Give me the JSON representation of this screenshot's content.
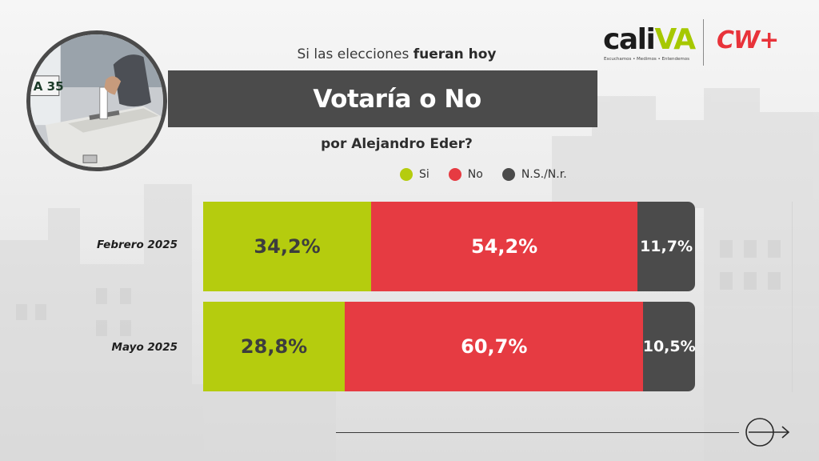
{
  "header": {
    "kicker_plain": "Si las elecciones",
    "kicker_bold": "fueran hoy",
    "title": "Votaría o No",
    "question": "por Alejandro Eder?"
  },
  "logos": {
    "cali_prefix": "cali",
    "cali_suffix": "VA",
    "cali_tagline": "Escuchamos • Medimos • Entendemos",
    "cw": "CW+"
  },
  "photo": {
    "box_label": "A 35"
  },
  "colors": {
    "si": "#b5cc0e",
    "no": "#e63b42",
    "ns": "#4b4b4b",
    "title_band": "#4b4b4b"
  },
  "chart_data": {
    "type": "bar",
    "orientation": "horizontal",
    "stacked": true,
    "normalized": true,
    "title": "Votaría o No",
    "categories": [
      "Febrero 2025",
      "Mayo 2025"
    ],
    "series": [
      {
        "name": "Si",
        "values": [
          34.2,
          28.8
        ],
        "labels": [
          "34,2%",
          "28,8%"
        ]
      },
      {
        "name": "No",
        "values": [
          54.2,
          60.7
        ],
        "labels": [
          "54,2%",
          "60,7%"
        ]
      },
      {
        "name": "N.S./N.r.",
        "values": [
          11.7,
          10.5
        ],
        "labels": [
          "11,7%",
          "10,5%"
        ]
      }
    ],
    "legend_position": "top-right",
    "grid": false
  },
  "icons": {
    "next": "circle-arrow-right-icon"
  }
}
